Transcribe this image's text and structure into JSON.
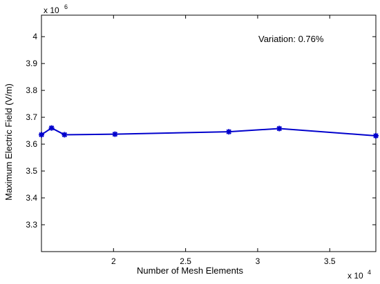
{
  "chart_data": {
    "type": "line",
    "xlabel": "Number of Mesh Elements",
    "ylabel": "Maximum Electric Field (V/m)",
    "x_multiplier": {
      "base": "x 10",
      "exponent": "4"
    },
    "y_multiplier": {
      "base": "x 10",
      "exponent": "6"
    },
    "xlim": [
      1.5,
      3.82
    ],
    "ylim": [
      3.2,
      4.08
    ],
    "x_ticks": [
      2,
      2.5,
      3,
      3.5
    ],
    "x_tick_labels": [
      "2",
      "2.5",
      "3",
      "3.5"
    ],
    "y_ticks": [
      3.3,
      3.4,
      3.5,
      3.6,
      3.7,
      3.8,
      3.9,
      4.0
    ],
    "y_tick_labels": [
      "3.3",
      "3.4",
      "3.5",
      "3.6",
      "3.7",
      "3.8",
      "3.9",
      "4"
    ],
    "grid": false,
    "annotation": "Variation: 0.76%",
    "series": [
      {
        "color": "#0000cc",
        "marker": "asterisk",
        "x": [
          1.5,
          1.57,
          1.66,
          2.01,
          2.8,
          3.15,
          3.82
        ],
        "y": [
          3.635,
          3.66,
          3.635,
          3.637,
          3.646,
          3.658,
          3.631
        ]
      }
    ]
  }
}
